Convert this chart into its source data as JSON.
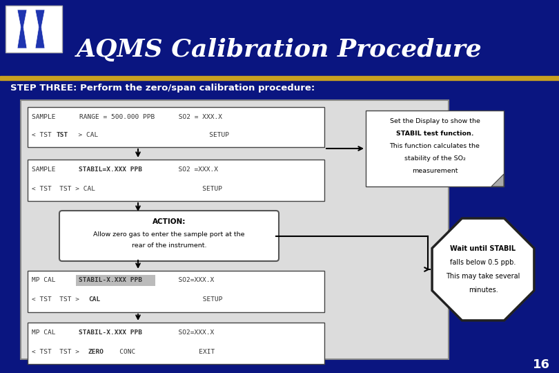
{
  "title": "AQMS Calibration Procedure",
  "subtitle": "STEP THREE: Perform the zero/span calibration procedure:",
  "page_number": "16",
  "bg_color": "#0a1580",
  "gold_line_color": "#c8a020",
  "content_bg": "#dcdcdc",
  "callout1_lines": [
    "Set the Display to show the",
    "STABIL test function.",
    "This function calculates the",
    "stability of the SO₂",
    "measurement"
  ],
  "octagon_lines": [
    "Wait until STABIL",
    "falls below 0.5 ppb.",
    "This may take several",
    "minutes."
  ]
}
